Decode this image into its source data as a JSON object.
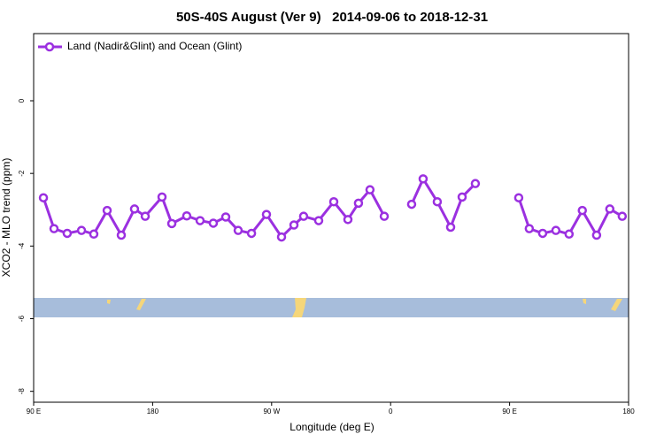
{
  "chart_data": {
    "type": "line",
    "title": "50S-40S August (Ver 9)   2014-09-06 to 2018-12-31",
    "x_label": "Longitude (deg E)",
    "y_label": "XCO2 - MLO trend (ppm)",
    "xlim": [
      90,
      540
    ],
    "ylim": [
      -8.3,
      1.85
    ],
    "xticks": [
      {
        "value": 90,
        "label": "90 E"
      },
      180,
      {
        "value": 270,
        "label": "90 W"
      },
      {
        "value": 360,
        "label": "0"
      },
      {
        "value": 450,
        "label": "90 E"
      },
      {
        "value": 540,
        "label": "180"
      }
    ],
    "yticks": [
      0,
      -2,
      -4,
      -6,
      -8
    ],
    "legend": "upper left",
    "x": [
      97.4,
      105.4,
      115.4,
      126.2,
      135.5,
      145.6,
      156.3,
      166.3,
      174.4,
      187.1,
      194.5,
      205.8,
      215.9,
      225.9,
      235.3,
      244.7,
      254.8,
      266.1,
      277.5,
      286.9,
      294.2,
      305.6,
      317,
      327.7,
      335.7,
      344.4,
      355.2,
      365,
      375.9,
      384.6,
      395.3,
      405.4,
      414.1,
      424.1,
      440,
      456.9,
      464.9,
      475,
      485,
      495,
      505,
      515.8,
      525.8,
      535.2
    ],
    "series": [
      {
        "name": "Land (Nadir&Glint) and Ocean (Glint)",
        "color": "#9b30e0",
        "values": [
          -2.67,
          -3.52,
          -3.65,
          -3.57,
          -3.67,
          -3.02,
          -3.7,
          -2.98,
          -3.18,
          -2.65,
          -3.38,
          -3.17,
          -3.3,
          -3.37,
          -3.2,
          -3.57,
          -3.65,
          -3.13,
          -3.75,
          -3.42,
          -3.18,
          -3.3,
          -2.78,
          -3.27,
          -2.82,
          -2.45,
          -3.18,
          null,
          -2.85,
          -2.15,
          -2.78,
          -3.48,
          -2.65,
          -2.28,
          null,
          -2.67,
          -3.52,
          -3.65,
          -3.57,
          -3.67,
          -3.02,
          -3.7,
          -2.98,
          -3.18
        ]
      }
    ]
  }
}
